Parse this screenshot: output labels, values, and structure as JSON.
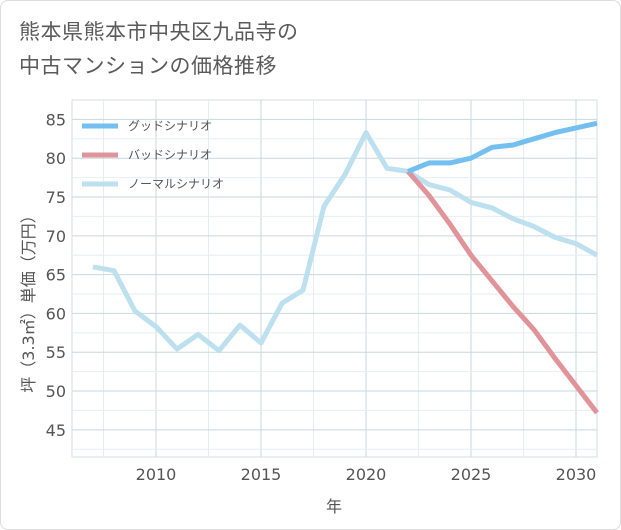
{
  "title_lines": [
    "熊本県熊本市中央区九品寺の",
    "中古マンションの価格推移"
  ],
  "chart_data": {
    "type": "line",
    "xlabel": "年",
    "ylabel": "坪（3.3㎡）単価（万円）",
    "xlim": [
      2006,
      2031
    ],
    "ylim": [
      41.5,
      87.5
    ],
    "x_ticks": [
      2010,
      2015,
      2020,
      2025,
      2030
    ],
    "y_ticks": [
      45,
      50,
      55,
      60,
      65,
      70,
      75,
      80,
      85
    ],
    "grid": true,
    "legend_position": "top-left",
    "series": [
      {
        "name": "グッドシナリオ",
        "color": "#72bff0",
        "x": [
          2022,
          2023,
          2024,
          2025,
          2026,
          2027,
          2028,
          2029,
          2030,
          2031
        ],
        "values": [
          78.3,
          79.4,
          79.4,
          80.0,
          81.4,
          81.7,
          82.5,
          83.3,
          83.9,
          84.5
        ]
      },
      {
        "name": "バッドシナリオ",
        "color": "#e0949a",
        "x": [
          2022,
          2023,
          2024,
          2025,
          2026,
          2027,
          2028,
          2029,
          2030,
          2031
        ],
        "values": [
          78.3,
          75.2,
          71.5,
          67.5,
          64.2,
          60.9,
          57.9,
          54.2,
          50.7,
          47.2
        ]
      },
      {
        "name": "ノーマルシナリオ",
        "color": "#bde0ee",
        "x": [
          2007,
          2008,
          2009,
          2010,
          2011,
          2012,
          2013,
          2014,
          2015,
          2016,
          2017,
          2018,
          2019,
          2020,
          2021,
          2022,
          2023,
          2024,
          2025,
          2026,
          2027,
          2028,
          2029,
          2030,
          2031
        ],
        "values": [
          66.0,
          65.5,
          60.3,
          58.3,
          55.4,
          57.3,
          55.2,
          58.5,
          56.2,
          61.3,
          63.0,
          73.8,
          77.9,
          83.3,
          78.7,
          78.3,
          76.6,
          75.9,
          74.3,
          73.6,
          72.2,
          71.2,
          69.8,
          69.0,
          67.5
        ]
      }
    ]
  }
}
